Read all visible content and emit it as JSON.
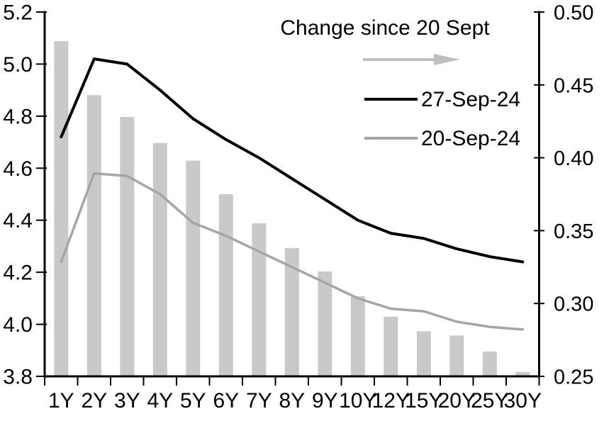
{
  "chart_data": {
    "type": "bar",
    "categories": [
      "1Y",
      "2Y",
      "3Y",
      "4Y",
      "5Y",
      "6Y",
      "7Y",
      "8Y",
      "9Y",
      "10Y",
      "12Y",
      "15Y",
      "20Y",
      "25Y",
      "30Y"
    ],
    "series": [
      {
        "name": "Change since 20 Sept",
        "type": "bar",
        "axis": "right",
        "color": "#C9C9C9",
        "values": [
          0.48,
          0.443,
          0.428,
          0.41,
          0.398,
          0.375,
          0.355,
          0.338,
          0.322,
          0.305,
          0.291,
          0.281,
          0.278,
          0.267,
          0.253
        ]
      },
      {
        "name": "27-Sep-24",
        "type": "line",
        "axis": "left",
        "color": "#000000",
        "values": [
          4.72,
          5.02,
          5.0,
          4.9,
          4.79,
          4.71,
          4.64,
          4.56,
          4.48,
          4.4,
          4.35,
          4.33,
          4.29,
          4.26,
          4.24
        ]
      },
      {
        "name": "20-Sep-24",
        "type": "line",
        "axis": "left",
        "color": "#A6A6A6",
        "values": [
          4.24,
          4.58,
          4.57,
          4.5,
          4.39,
          4.34,
          4.28,
          4.22,
          4.16,
          4.1,
          4.06,
          4.05,
          4.01,
          3.99,
          3.98
        ]
      }
    ],
    "left_axis": {
      "range": [
        3.8,
        5.2
      ],
      "tick_labels": [
        "5.2",
        "5.0",
        "4.8",
        "4.6",
        "4.4",
        "4.2",
        "4.0",
        "3.8"
      ]
    },
    "right_axis": {
      "range": [
        0.25,
        0.5
      ],
      "tick_labels": [
        "0.50",
        "0.45",
        "0.40",
        "0.35",
        "0.30",
        "0.25"
      ]
    },
    "title": "",
    "xlabel": "",
    "ylabel": "",
    "grid": false,
    "legend_position": "top-right-inside"
  },
  "legend": {
    "title": "Change since 20 Sept",
    "arrow_color": "#BFBFBF",
    "entries": [
      {
        "label": "27-Sep-24",
        "color": "#000000"
      },
      {
        "label": "20-Sep-24",
        "color": "#A6A6A6"
      }
    ]
  },
  "colors": {
    "background": "#FFFFFF",
    "axis": "#000000",
    "text": "#000000",
    "bar_fill": "#C9C9C9",
    "line_27sep": "#000000",
    "line_20sep": "#A6A6A6",
    "arrow": "#BFBFBF"
  }
}
